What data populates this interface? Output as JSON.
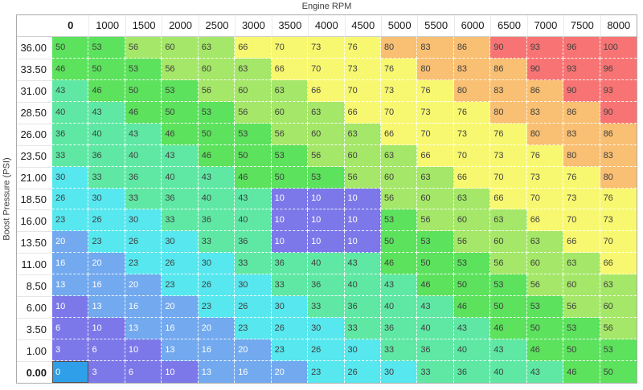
{
  "title": "Engine RPM",
  "y_axis_label": "Boost Pressure (PSI)",
  "selected": {
    "row_label": "0.00",
    "column_label": "0",
    "value": 0
  },
  "colors": {
    "bands": [
      {
        "min": 0,
        "max": 12,
        "bg": "#7c78e9",
        "fg": "#ffffff"
      },
      {
        "min": 13,
        "max": 22,
        "bg": "#72a9ef",
        "fg": "#ffffff"
      },
      {
        "min": 23,
        "max": 32,
        "bg": "#57e7ee",
        "fg": "#3f3f3f"
      },
      {
        "min": 33,
        "max": 45,
        "bg": "#5fe8a4",
        "fg": "#3f3f3f"
      },
      {
        "min": 46,
        "max": 55,
        "bg": "#5ce25c",
        "fg": "#3f3f3f"
      },
      {
        "min": 56,
        "max": 65,
        "bg": "#a5e768",
        "fg": "#3f3f3f"
      },
      {
        "min": 66,
        "max": 79,
        "bg": "#f8f870",
        "fg": "#3f3f3f"
      },
      {
        "min": 80,
        "max": 89,
        "bg": "#f9bf72",
        "fg": "#3f3f3f"
      },
      {
        "min": 90,
        "max": 100,
        "bg": "#f87474",
        "fg": "#3f3f3f"
      }
    ],
    "selected_bg": "#2e9fe8",
    "selected_fg": "#ffffff",
    "selected_border": "#4f4f4f"
  },
  "chart_data": {
    "type": "heatmap",
    "title": "Engine RPM",
    "xlabel": "Engine RPM",
    "ylabel": "Boost Pressure (PSI)",
    "x_categories": [
      "0",
      "1000",
      "1500",
      "2000",
      "2500",
      "3000",
      "3500",
      "4000",
      "4500",
      "5000",
      "5500",
      "6000",
      "6500",
      "7000",
      "7500",
      "8000"
    ],
    "y_categories": [
      "36.00",
      "33.50",
      "31.00",
      "28.50",
      "26.00",
      "23.50",
      "21.00",
      "18.50",
      "16.00",
      "13.50",
      "11.00",
      "8.50",
      "6.00",
      "3.50",
      "1.00",
      "0.00"
    ],
    "values": [
      [
        50,
        53,
        56,
        60,
        63,
        66,
        70,
        73,
        76,
        80,
        83,
        86,
        90,
        93,
        96,
        100
      ],
      [
        46,
        50,
        53,
        56,
        60,
        63,
        66,
        70,
        73,
        76,
        80,
        83,
        86,
        90,
        93,
        96
      ],
      [
        43,
        46,
        50,
        53,
        56,
        60,
        63,
        66,
        70,
        73,
        76,
        80,
        83,
        86,
        90,
        93
      ],
      [
        40,
        43,
        46,
        50,
        53,
        56,
        60,
        63,
        66,
        70,
        73,
        76,
        80,
        83,
        86,
        90
      ],
      [
        36,
        40,
        43,
        46,
        50,
        53,
        56,
        60,
        63,
        66,
        70,
        73,
        76,
        80,
        83,
        86
      ],
      [
        33,
        36,
        40,
        43,
        46,
        50,
        53,
        56,
        60,
        63,
        66,
        70,
        73,
        76,
        80,
        83
      ],
      [
        30,
        33,
        36,
        40,
        43,
        46,
        50,
        53,
        56,
        60,
        63,
        66,
        70,
        73,
        76,
        80
      ],
      [
        26,
        30,
        33,
        36,
        40,
        43,
        10,
        10,
        10,
        56,
        60,
        63,
        66,
        70,
        73,
        76
      ],
      [
        23,
        26,
        30,
        33,
        36,
        40,
        10,
        10,
        10,
        53,
        56,
        60,
        63,
        66,
        70,
        73
      ],
      [
        20,
        23,
        26,
        30,
        33,
        36,
        10,
        10,
        10,
        50,
        53,
        56,
        60,
        63,
        66,
        70
      ],
      [
        16,
        20,
        23,
        26,
        30,
        33,
        36,
        40,
        43,
        46,
        50,
        53,
        56,
        60,
        63,
        66
      ],
      [
        13,
        16,
        20,
        23,
        26,
        30,
        33,
        36,
        40,
        43,
        46,
        50,
        53,
        56,
        60,
        63
      ],
      [
        10,
        13,
        16,
        20,
        23,
        26,
        30,
        33,
        36,
        40,
        43,
        46,
        50,
        53,
        56,
        60
      ],
      [
        6,
        10,
        13,
        16,
        20,
        23,
        26,
        30,
        33,
        36,
        40,
        43,
        46,
        50,
        53,
        56
      ],
      [
        3,
        6,
        10,
        13,
        16,
        20,
        23,
        26,
        30,
        33,
        36,
        40,
        43,
        46,
        50,
        53
      ],
      [
        0,
        3,
        6,
        10,
        13,
        16,
        20,
        23,
        26,
        30,
        33,
        36,
        40,
        43,
        46,
        50
      ]
    ]
  }
}
